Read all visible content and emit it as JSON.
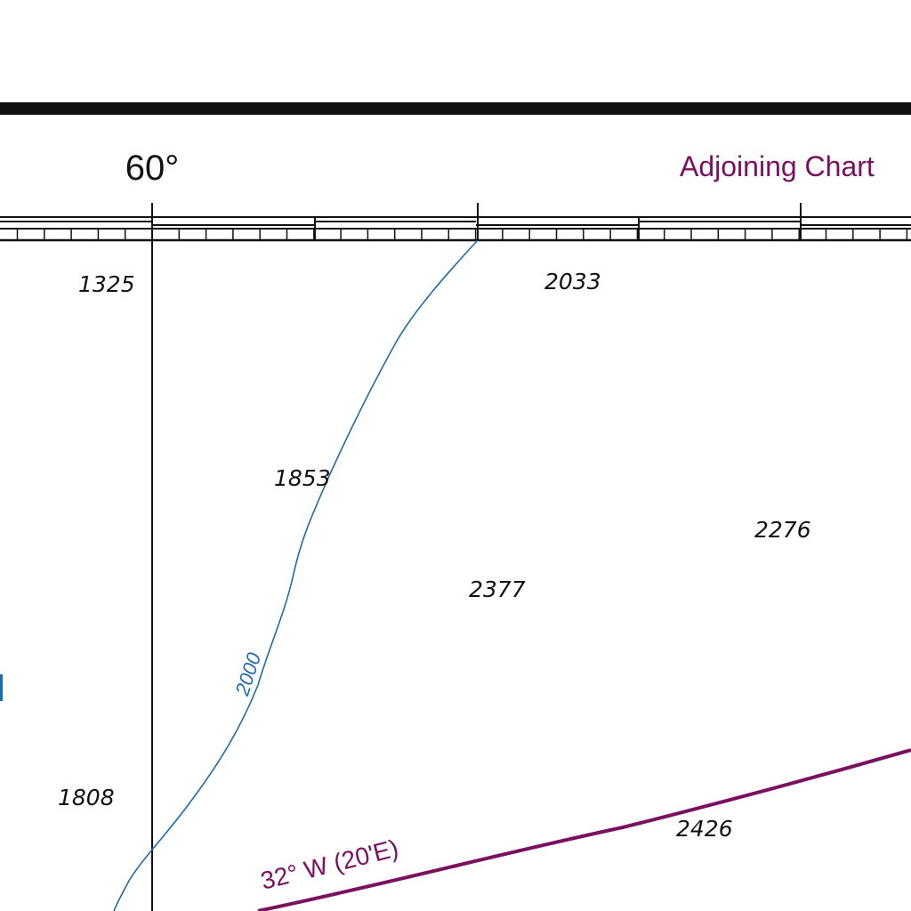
{
  "colors": {
    "ink": "#111111",
    "magenta": "#7a1060",
    "contour_blue": "#1f6aa8",
    "paper": "#ffffff"
  },
  "graticule": {
    "longitude_label": "60°"
  },
  "adjoining_chart": {
    "label": "Adjoining Chart"
  },
  "soundings": [
    {
      "id": "s1325",
      "value": "1325"
    },
    {
      "id": "s2033",
      "value": "2033"
    },
    {
      "id": "s1853",
      "value": "1853"
    },
    {
      "id": "s2276",
      "value": "2276"
    },
    {
      "id": "s2377",
      "value": "2377"
    },
    {
      "id": "s1808",
      "value": "1808"
    },
    {
      "id": "s2426",
      "value": "2426"
    }
  ],
  "depth_contour": {
    "label": "2000"
  },
  "isogonic_line": {
    "label": "32° W (20'E)"
  }
}
